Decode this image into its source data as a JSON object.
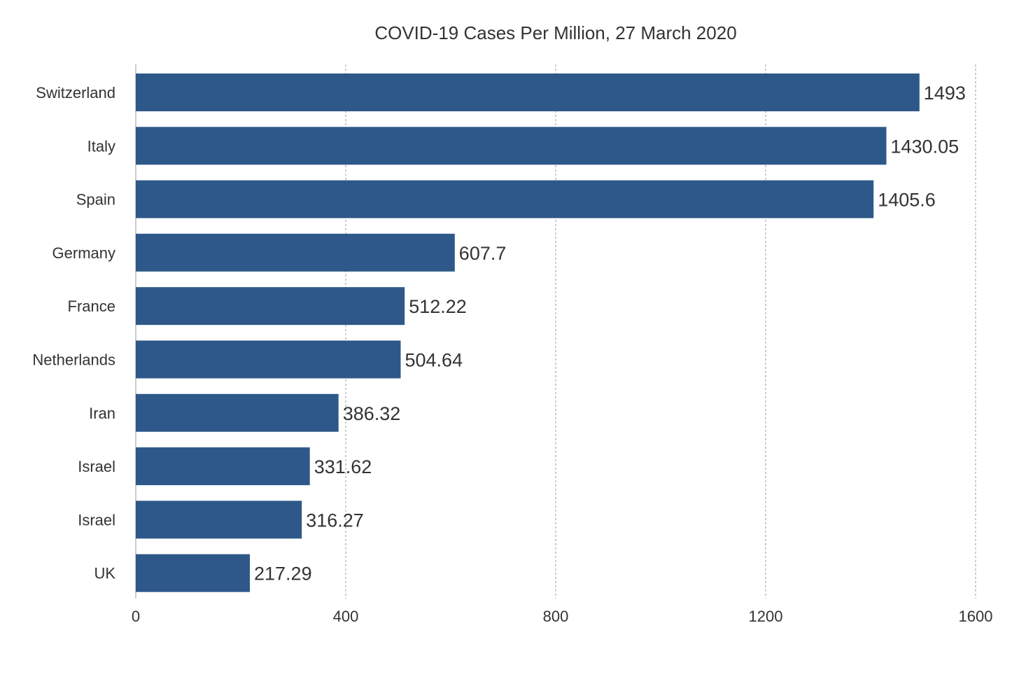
{
  "chart_data": {
    "type": "bar",
    "orientation": "horizontal",
    "title": "COVID-19 Cases Per Million, 27 March 2020",
    "categories": [
      "Switzerland",
      "Italy",
      "Spain",
      "Germany",
      "France",
      "Netherlands",
      "Iran",
      "Israel",
      "Israel",
      "UK"
    ],
    "values": [
      1493,
      1430.05,
      1405.6,
      607.7,
      512.22,
      504.64,
      386.32,
      331.62,
      316.27,
      217.29
    ],
    "value_labels": [
      "1493",
      "1430.05",
      "1405.6",
      "607.7",
      "512.22",
      "504.64",
      "386.32",
      "331.62",
      "316.27",
      "217.29"
    ],
    "xlim": [
      0,
      1600
    ],
    "xticks": [
      0,
      400,
      800,
      1200,
      1600
    ],
    "xtick_labels": [
      "0",
      "400",
      "800",
      "1200",
      "1600"
    ],
    "xlabel": "",
    "ylabel": "",
    "grid": true,
    "legend": "none",
    "colors": {
      "bar": "#2e5889",
      "text": "#333333",
      "grid": "#9a9a9a"
    }
  }
}
